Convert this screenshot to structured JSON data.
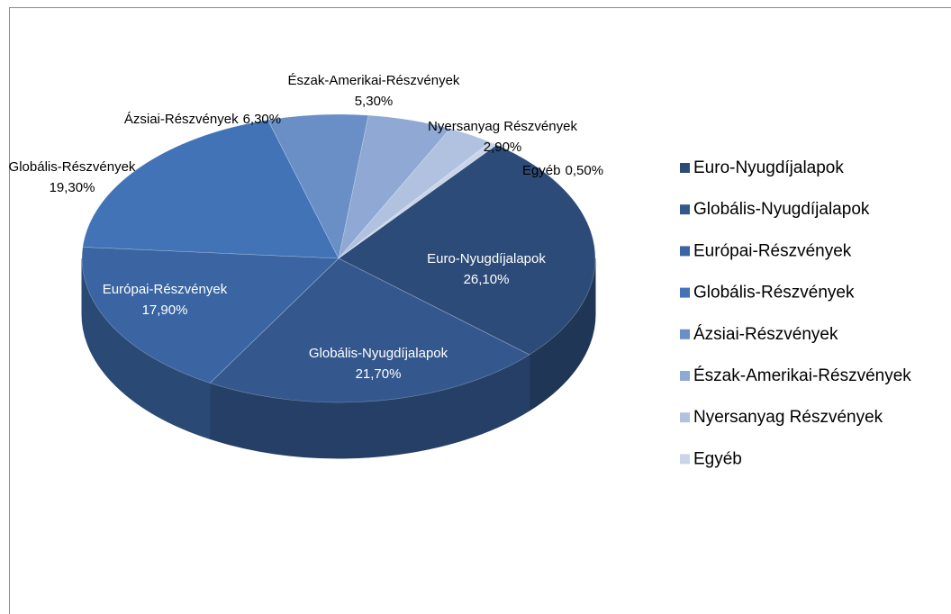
{
  "chart_data": {
    "type": "pie3d",
    "categories": [
      "Euro-Nyugdíjalapok",
      "Globális-Nyugdíjalapok",
      "Európai-Részvények",
      "Globális-Részvények",
      "Ázsiai-Részvények",
      "Észak-Amerikai-Részvények",
      "Nyersanyag Részvények",
      "Egyéb"
    ],
    "values": [
      26.1,
      21.7,
      17.9,
      19.3,
      6.3,
      5.3,
      2.9,
      0.5
    ],
    "value_labels": [
      "26,10%",
      "21,70%",
      "17,90%",
      "19,30%",
      "6,30%",
      "5,30%",
      "2,90%",
      "0,50%"
    ],
    "colors": [
      "#2d4b78",
      "#34588e",
      "#3a65a2",
      "#4173b6",
      "#6a8fc6",
      "#8fa8d4",
      "#b1c2e1",
      "#cbd5ea"
    ],
    "legend": "right"
  }
}
